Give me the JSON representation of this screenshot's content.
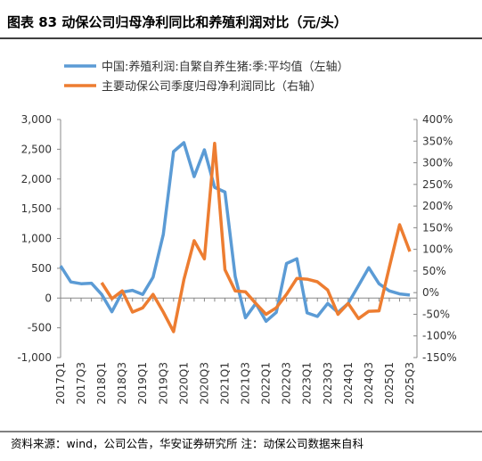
{
  "chart_data": {
    "type": "line",
    "title": "图表 83  动保公司归母净利同比和养殖利润对比（元/头）",
    "source": "资料来源：wind，公司公告，华安证券研究所  注：动保公司数据来自科",
    "categories": [
      "2017Q1",
      null,
      "2017Q3",
      null,
      "2018Q1",
      null,
      "2018Q3",
      null,
      "2019Q1",
      null,
      "2019Q3",
      null,
      "2020Q1",
      null,
      "2020Q3",
      null,
      "2021Q1",
      null,
      "2021Q3",
      null,
      "2022Q1",
      null,
      "2022Q3",
      null,
      "2023Q1",
      null,
      "2023Q3",
      null,
      "2024Q1",
      null,
      "2024Q3",
      null,
      "2025Q1",
      null,
      "2025Q3"
    ],
    "series": [
      {
        "name": "中国:养殖利润:自繁自养生猪:季:平均值（左轴）",
        "color": "#5b9bd5",
        "axis": "y",
        "values": [
          540,
          270,
          240,
          250,
          60,
          -230,
          100,
          130,
          60,
          350,
          1070,
          2460,
          2610,
          2040,
          2490,
          1860,
          1780,
          360,
          -330,
          -90,
          -390,
          -240,
          580,
          660,
          -250,
          -310,
          -90,
          -240,
          -90,
          210,
          510,
          240,
          120,
          70,
          50
        ]
      },
      {
        "name": "主要动保公司季度归母净利润同比（右轴）",
        "color": "#ed7d31",
        "axis": "y2",
        "values": [
          null,
          null,
          null,
          null,
          23,
          -14,
          4,
          -45,
          -35,
          -4,
          -45,
          -90,
          30,
          120,
          78,
          345,
          53,
          4,
          2,
          -25,
          -50,
          -35,
          -4,
          33,
          31,
          25,
          6,
          -50,
          -25,
          -60,
          -43,
          -42,
          58,
          157,
          95
        ]
      }
    ],
    "ylim": [
      -1000,
      3000
    ],
    "yticks": [
      {
        "value": -1000,
        "label": "-1,000"
      },
      -500,
      0,
      500,
      {
        "value": 1000,
        "label": "1,000"
      },
      {
        "value": 1500,
        "label": "1,500"
      },
      {
        "value": 2000,
        "label": "2,000"
      },
      {
        "value": 2500,
        "label": "2,500"
      },
      {
        "value": 3000,
        "label": "3,000"
      }
    ],
    "y2lim": [
      -150,
      400
    ],
    "y2ticks": [
      {
        "value": -150,
        "label": "-150%"
      },
      {
        "value": -100,
        "label": "-100%"
      },
      {
        "value": -50,
        "label": "-50%"
      },
      {
        "value": 0,
        "label": "0%"
      },
      {
        "value": 50,
        "label": "50%"
      },
      {
        "value": 100,
        "label": "100%"
      },
      {
        "value": 150,
        "label": "150%"
      },
      {
        "value": 200,
        "label": "200%"
      },
      {
        "value": 250,
        "label": "250%"
      },
      {
        "value": 300,
        "label": "300%"
      },
      {
        "value": 350,
        "label": "350%"
      },
      {
        "value": 400,
        "label": "400%"
      }
    ]
  }
}
